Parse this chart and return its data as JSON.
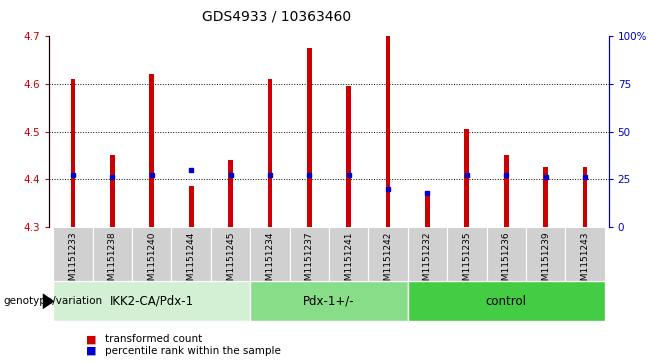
{
  "title": "GDS4933 / 10363460",
  "samples": [
    "GSM1151233",
    "GSM1151238",
    "GSM1151240",
    "GSM1151244",
    "GSM1151245",
    "GSM1151234",
    "GSM1151237",
    "GSM1151241",
    "GSM1151242",
    "GSM1151232",
    "GSM1151235",
    "GSM1151236",
    "GSM1151239",
    "GSM1151243"
  ],
  "transformed_count": [
    4.61,
    4.45,
    4.62,
    4.385,
    4.44,
    4.61,
    4.675,
    4.595,
    4.7,
    4.375,
    4.505,
    4.45,
    4.425,
    4.425
  ],
  "percentile_rank": [
    27,
    26,
    27,
    30,
    27,
    27,
    27,
    27,
    20,
    18,
    27,
    27,
    26,
    26
  ],
  "groups": [
    {
      "label": "IKK2-CA/Pdx-1",
      "start": 0,
      "end": 5,
      "color": "#d4f0d4"
    },
    {
      "label": "Pdx-1+/-",
      "start": 5,
      "end": 9,
      "color": "#88dd88"
    },
    {
      "label": "control",
      "start": 9,
      "end": 14,
      "color": "#44cc44"
    }
  ],
  "ylim_left": [
    4.3,
    4.7
  ],
  "ylim_right": [
    0,
    100
  ],
  "yticks_left": [
    4.3,
    4.4,
    4.5,
    4.6,
    4.7
  ],
  "yticks_right": [
    0,
    25,
    50,
    75,
    100
  ],
  "bar_color": "#cc0000",
  "marker_color": "#0000cc",
  "bar_bottom": 4.3,
  "bar_width": 0.12,
  "grid_lines": [
    4.4,
    4.5,
    4.6
  ],
  "legend_items": [
    {
      "label": "transformed count",
      "color": "#cc0000"
    },
    {
      "label": "percentile rank within the sample",
      "color": "#0000cc"
    }
  ],
  "genotype_label": "genotype/variation",
  "title_fontsize": 10,
  "tick_fontsize": 7.5,
  "label_fontsize": 6.5,
  "group_fontsize": 8.5,
  "ylabel_left_color": "#cc0000",
  "ylabel_right_color": "#0000cc",
  "sample_bg_color": "#d0d0d0"
}
